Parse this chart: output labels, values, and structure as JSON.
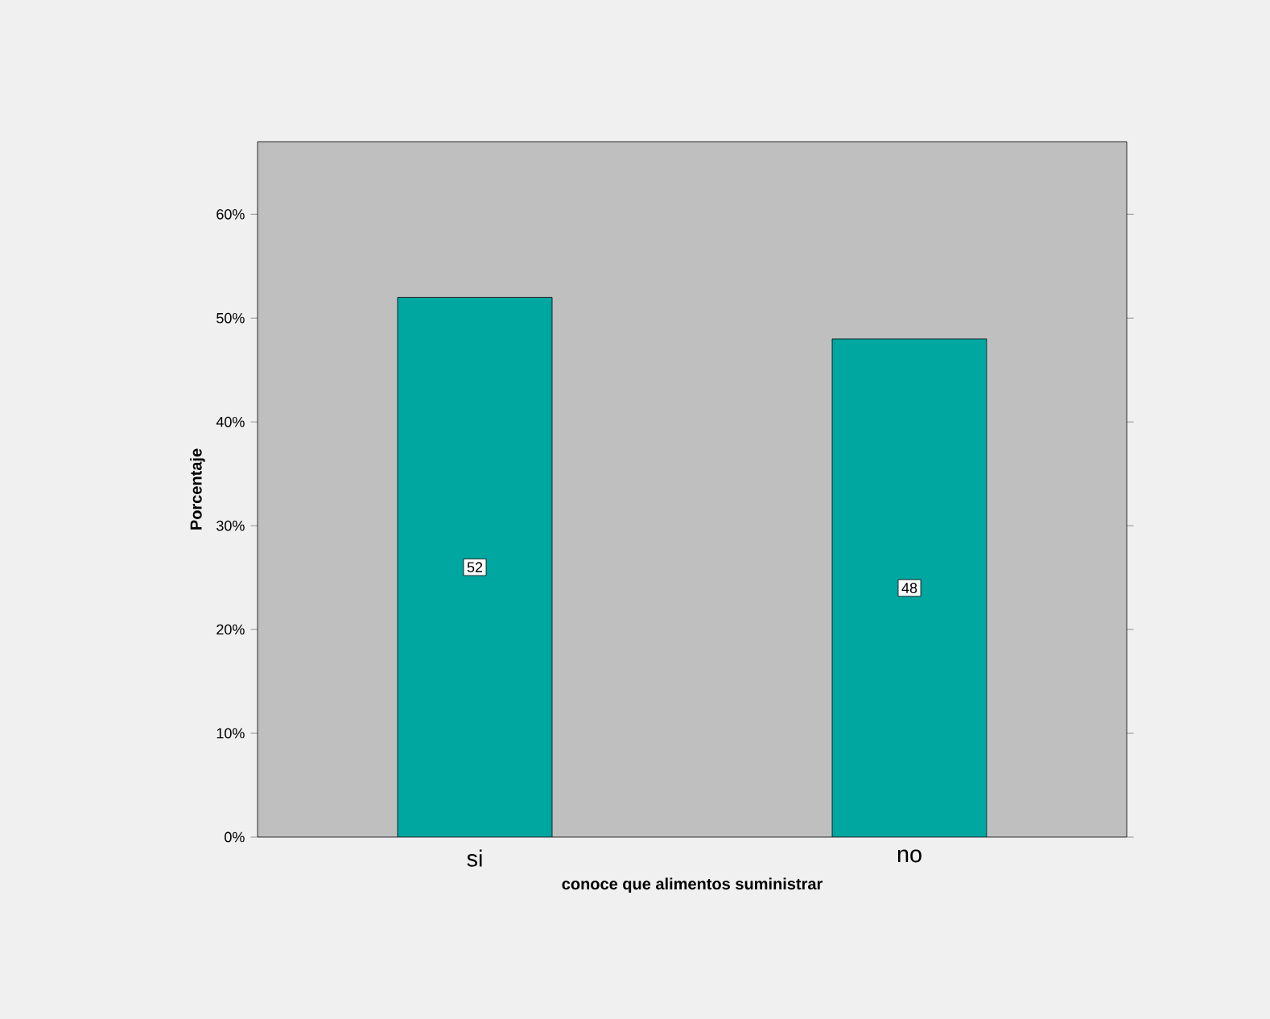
{
  "chart_data": {
    "type": "bar",
    "xlabel": "conoce que alimentos suministrar",
    "ylabel": "Porcentaje",
    "categories": [
      "si",
      "no"
    ],
    "values": [
      52,
      48
    ],
    "color": "#00a6a0",
    "data_labels": true,
    "ylim": [
      0,
      67
    ],
    "yticks": [
      {
        "value": 0,
        "label": "0%"
      },
      {
        "value": 10,
        "label": "10%"
      },
      {
        "value": 20,
        "label": "20%"
      },
      {
        "value": 30,
        "label": "30%"
      },
      {
        "value": 40,
        "label": "40%"
      },
      {
        "value": 50,
        "label": "50%"
      },
      {
        "value": 60,
        "label": "60%"
      }
    ],
    "grid": false
  }
}
